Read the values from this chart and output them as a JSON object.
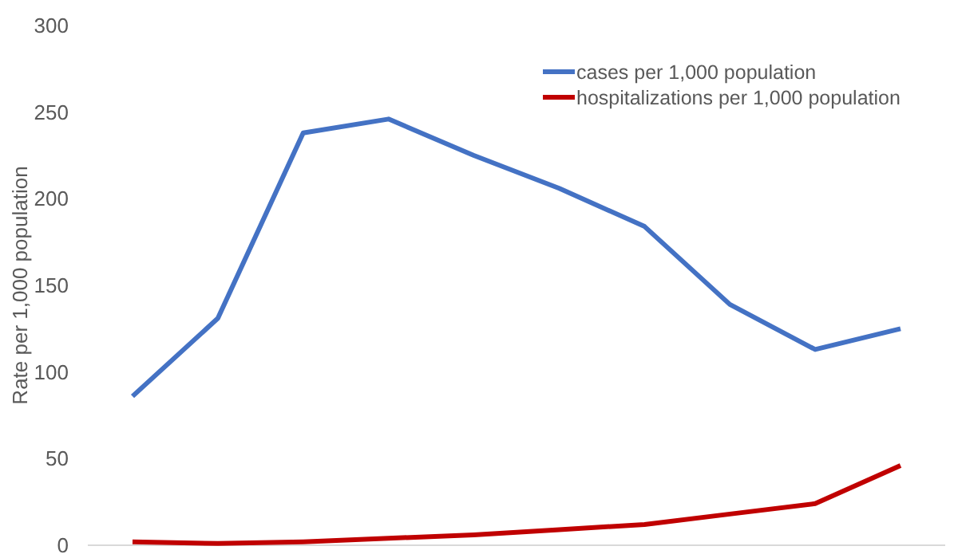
{
  "chart_data": {
    "type": "line",
    "ylabel": "Rate per 1,000 population",
    "categories": [
      null,
      null,
      null,
      null,
      null,
      null,
      null,
      null,
      null,
      null
    ],
    "series": [
      {
        "name": "cases per 1,000 population",
        "color": "#4472c4",
        "values": [
          86,
          131,
          238,
          246,
          225,
          206,
          184,
          139,
          113,
          125
        ]
      },
      {
        "name": "hospitalizations per 1,000 population",
        "color": "#c00000",
        "values": [
          2,
          1,
          2,
          4,
          6,
          9,
          12,
          18,
          24,
          46
        ]
      }
    ],
    "ylim": [
      0,
      300
    ],
    "yticks": [
      0,
      50,
      100,
      150,
      200,
      250,
      300
    ],
    "grid": false,
    "legend": "top right",
    "marker": "none",
    "line_style": "solid"
  }
}
